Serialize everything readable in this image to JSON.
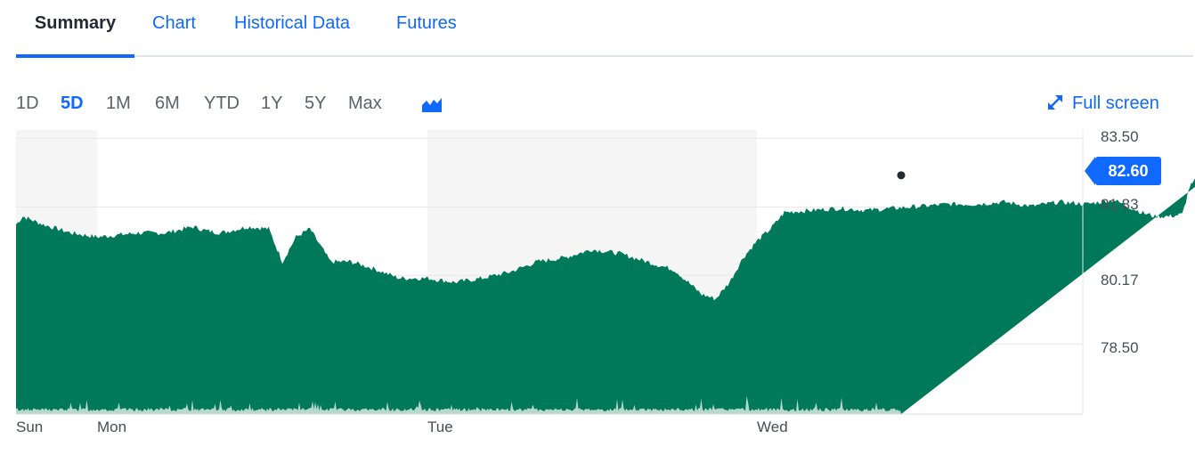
{
  "tabs": [
    {
      "label": "Summary",
      "active": true
    },
    {
      "label": "Chart",
      "active": false
    },
    {
      "label": "Historical Data",
      "active": false
    },
    {
      "label": "Futures",
      "active": false
    }
  ],
  "ranges": [
    {
      "label": "1D",
      "active": false
    },
    {
      "label": "5D",
      "active": true
    },
    {
      "label": "1M",
      "active": false
    },
    {
      "label": "6M",
      "active": false
    },
    {
      "label": "YTD",
      "active": false
    },
    {
      "label": "1Y",
      "active": false
    },
    {
      "label": "5Y",
      "active": false
    },
    {
      "label": "Max",
      "active": false
    }
  ],
  "toolbar": {
    "chart_type_icon": "mountain-chart-icon",
    "fullscreen_icon": "expand-arrows-icon",
    "fullscreen_label": "Full screen"
  },
  "colors": {
    "accent": "#0f69ff",
    "area_fill": "#00785a",
    "volume_fill": "#b8d8cc",
    "session_shade": "#f5f5f5"
  },
  "chart_data": {
    "type": "area",
    "y_ticks": [
      "83.50",
      "81.83",
      "80.17",
      "78.50"
    ],
    "ylim": [
      76.8,
      83.7
    ],
    "x_labels": [
      "Sun",
      "Mon",
      "Tue",
      "Wed"
    ],
    "last_price": "82.60",
    "grid": true,
    "price_path": [
      [
        "Sun 18:00",
        81.4
      ],
      [
        "Sun 18:30",
        81.6
      ],
      [
        "Sun 20:00",
        81.4
      ],
      [
        "Sun 22:00",
        81.2
      ],
      [
        "Mon 00:00",
        81.1
      ],
      [
        "Mon 01:30",
        81.15
      ],
      [
        "Mon 03:00",
        81.2
      ],
      [
        "Mon 05:00",
        81.2
      ],
      [
        "Mon 07:00",
        81.35
      ],
      [
        "Mon 08:00",
        81.25
      ],
      [
        "Mon 09:00",
        81.2
      ],
      [
        "Mon 11:00",
        81.35
      ],
      [
        "Mon 12:30",
        81.3
      ],
      [
        "Mon 13:30",
        80.5
      ],
      [
        "Mon 14:30",
        81.1
      ],
      [
        "Mon 15:30",
        81.3
      ],
      [
        "Mon 17:00",
        80.5
      ],
      [
        "Mon 18:30",
        80.5
      ],
      [
        "Mon 20:00",
        80.35
      ],
      [
        "Mon 22:00",
        80.1
      ],
      [
        "Tue 00:00",
        80.1
      ],
      [
        "Tue 02:00",
        80.0
      ],
      [
        "Tue 04:00",
        80.1
      ],
      [
        "Tue 06:00",
        80.25
      ],
      [
        "Tue 08:00",
        80.5
      ],
      [
        "Tue 10:00",
        80.6
      ],
      [
        "Tue 12:00",
        80.8
      ],
      [
        "Tue 14:00",
        80.7
      ],
      [
        "Tue 16:00",
        80.5
      ],
      [
        "Tue 18:00",
        80.3
      ],
      [
        "Tue 19:00",
        80.0
      ],
      [
        "Tue 20:00",
        79.7
      ],
      [
        "Tue 21:00",
        79.6
      ],
      [
        "Tue 22:00",
        80.0
      ],
      [
        "Tue 23:00",
        80.6
      ],
      [
        "Wed 00:00",
        81.0
      ],
      [
        "Wed 01:00",
        81.3
      ],
      [
        "Wed 02:00",
        81.7
      ],
      [
        "Wed 04:00",
        81.75
      ],
      [
        "Wed 06:00",
        81.8
      ],
      [
        "Wed 08:00",
        81.75
      ],
      [
        "Wed 10:00",
        81.8
      ],
      [
        "Wed 12:00",
        81.85
      ],
      [
        "Wed 14:00",
        81.9
      ],
      [
        "Wed 16:00",
        81.9
      ],
      [
        "Wed 18:00",
        81.95
      ],
      [
        "Wed 20:00",
        81.85
      ],
      [
        "Wed 22:00",
        81.95
      ],
      [
        "Thu 00:00",
        81.9
      ],
      [
        "Thu 02:00",
        82.0
      ],
      [
        "Thu 04:00",
        81.7
      ],
      [
        "Thu 05:00",
        81.6
      ],
      [
        "Thu 06:00",
        81.6
      ],
      [
        "Thu 07:00",
        81.65
      ],
      [
        "Thu 07:30",
        82.3
      ],
      [
        "Thu 08:00",
        82.5
      ],
      [
        "Thu 08:30",
        82.8
      ],
      [
        "Thu 09:00",
        82.6
      ]
    ]
  }
}
